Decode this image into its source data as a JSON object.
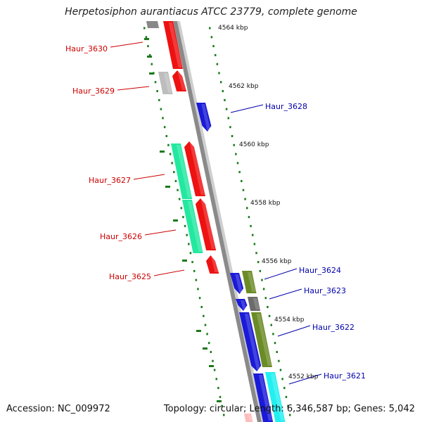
{
  "title": "Herpetosiphon aurantiacus ATCC 23779, complete genome",
  "accession": "Accession: NC_009972",
  "summary": "Topology: circular; Length: 6,346,587 bp; Genes: 5,042",
  "colors": {
    "backbone": "#8a8a8a",
    "ticks": "#1a7a1a",
    "left_labels": "#cc0000",
    "right_labels": "#0000aa",
    "scale_text": "#111111"
  },
  "scale_labels": [
    "4564 kbp",
    "4562 kbp",
    "4560 kbp",
    "4558 kbp",
    "4556 kbp",
    "4554 kbp",
    "4552 kbp"
  ],
  "gene_labels": {
    "left": [
      "Haur_3630",
      "Haur_3629",
      "Haur_3627",
      "Haur_3626",
      "Haur_3625"
    ],
    "right": [
      "Haur_3628",
      "Haur_3624",
      "Haur_3623",
      "Haur_3622",
      "Haur_3621"
    ]
  }
}
